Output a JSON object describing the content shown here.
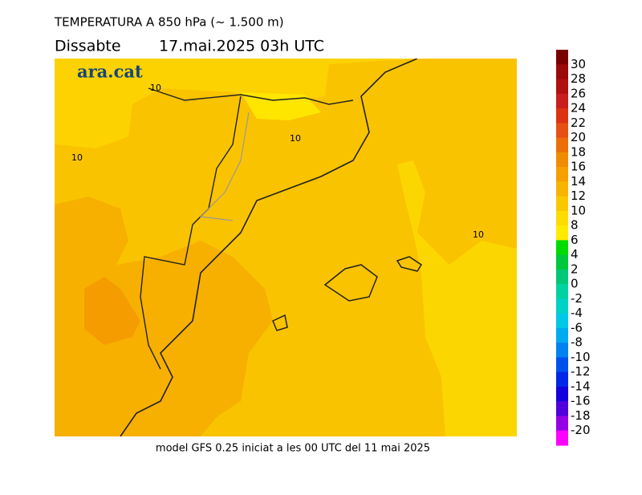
{
  "header": {
    "title": "TEMPERATURA A 850 hPa (~ 1.500 m)",
    "day": "Dissabte",
    "date": "17.mai.2025 03h UTC"
  },
  "logo": "ara.cat",
  "contour_labels": [
    10,
    10,
    10,
    10
  ],
  "footer": "model GFS 0.25 iniciat a les 00 UTC del 11 mai 2025",
  "colorbar": {
    "ticks": [
      30,
      28,
      26,
      24,
      22,
      20,
      18,
      16,
      14,
      12,
      10,
      8,
      6,
      4,
      2,
      0,
      -2,
      -4,
      -6,
      -8,
      -10,
      -12,
      -14,
      -16,
      -18,
      -20
    ],
    "colors": [
      "#7a0000",
      "#9a0a0a",
      "#b01010",
      "#c81e1e",
      "#dc3214",
      "#e65014",
      "#ec6e0a",
      "#f08c00",
      "#f5a000",
      "#f7b400",
      "#fac800",
      "#ffdc00",
      "#ffeb00",
      "#00dc00",
      "#00c83c",
      "#00c878",
      "#00d2a0",
      "#00d2c8",
      "#00c8e6",
      "#00aaf0",
      "#0082f0",
      "#0050f0",
      "#0028e6",
      "#1400dc",
      "#5000dc",
      "#9600e6",
      "#ff00ff"
    ]
  }
}
